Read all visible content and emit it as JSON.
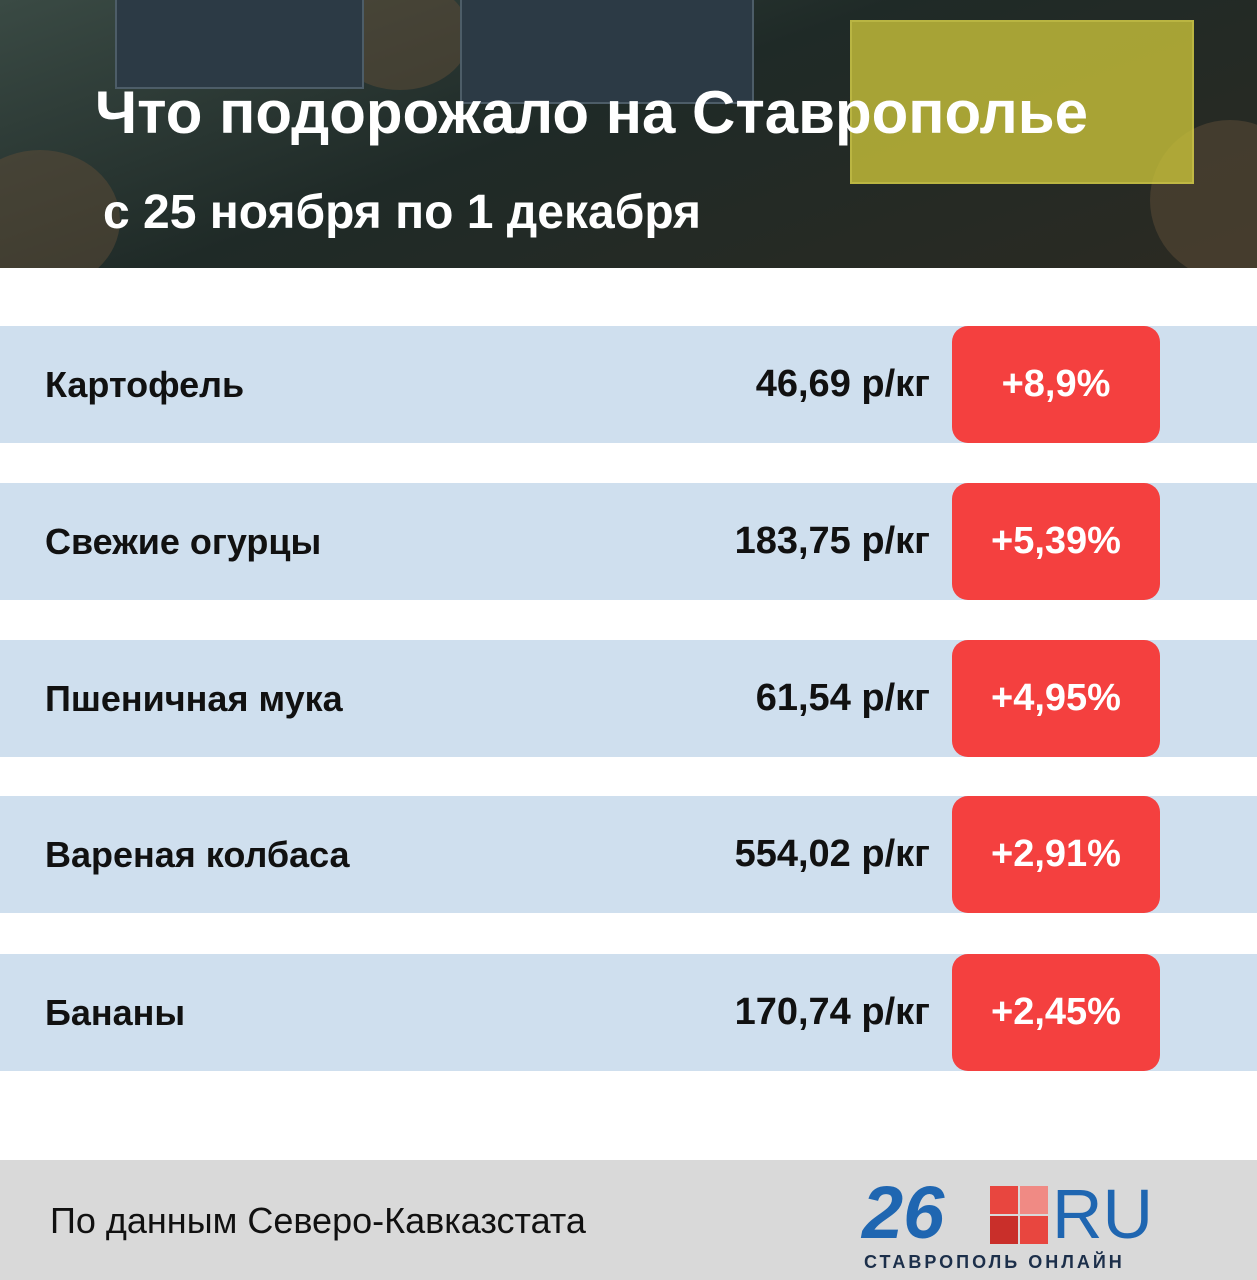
{
  "header": {
    "title": "Что подорожало на Ставрополье",
    "subtitle": "с 25 ноября по 1 декабря"
  },
  "table": {
    "rows": [
      [
        "Картофель",
        "46,69 р/кг",
        "+8,9%"
      ],
      [
        "Свежие огурцы",
        "183,75 р/кг",
        "+5,39%"
      ],
      [
        "Пшеничная мука",
        "61,54 р/кг",
        "+4,95%"
      ],
      [
        "Вареная колбаса",
        "554,02 р/кг",
        "+2,91%"
      ],
      [
        "Бананы",
        "170,74 р/кг",
        "+2,45%"
      ]
    ]
  },
  "footer": {
    "source": "По данным Северо-Кавказстата",
    "logo": {
      "number": "26",
      "domain": "RU",
      "caption": "СТАВРОПОЛЬ ОНЛАЙН"
    }
  }
}
